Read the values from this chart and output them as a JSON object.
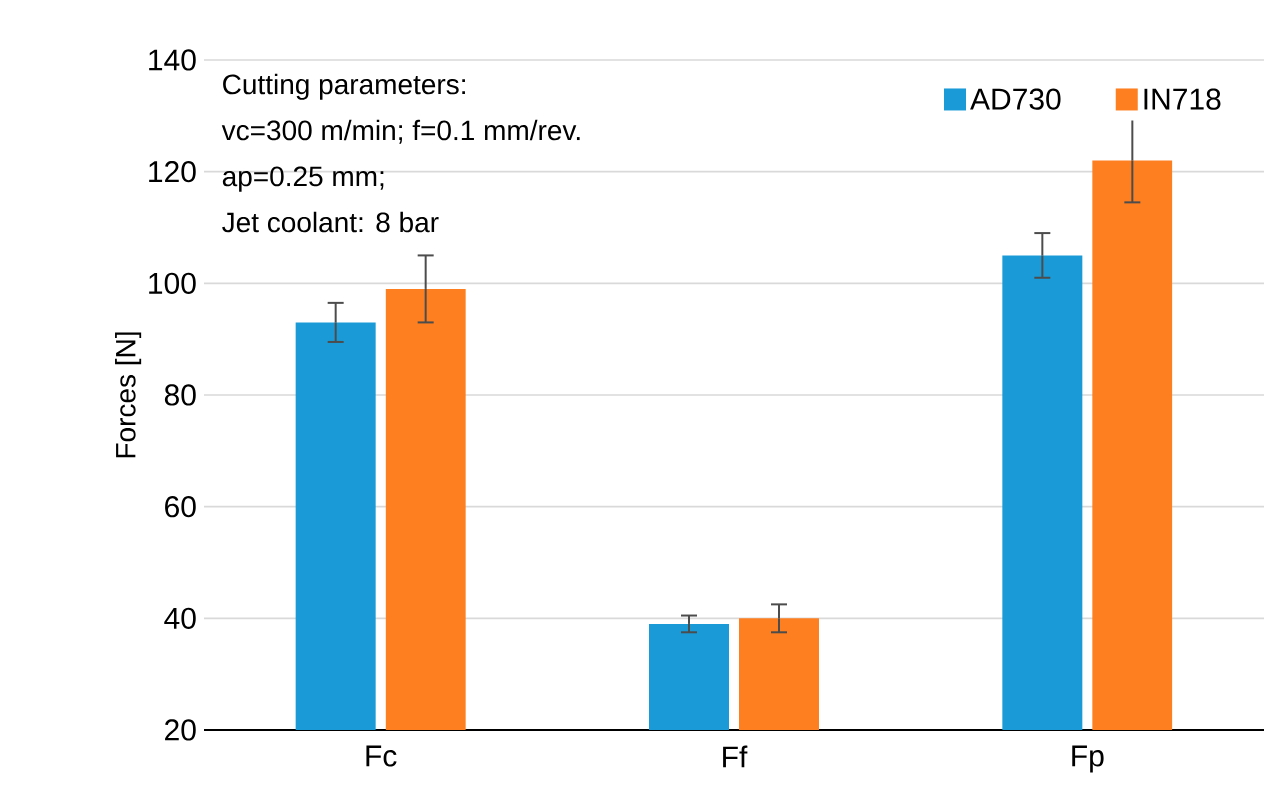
{
  "chart_data": {
    "type": "bar",
    "ylabel": "Forces [N]",
    "categories": [
      "Fc",
      "Ff",
      "Fp"
    ],
    "series": [
      {
        "name": "AD730",
        "color": "#1a9bd7",
        "values": [
          93,
          39,
          105
        ],
        "errors": [
          3.5,
          1.5,
          4
        ]
      },
      {
        "name": "IN718",
        "color": "#fd7f20",
        "values": [
          99,
          40,
          122
        ],
        "errors": [
          6,
          2.5,
          7.5
        ]
      }
    ],
    "ylim": [
      20,
      140
    ],
    "yticks": [
      20,
      40,
      60,
      80,
      100,
      120,
      140
    ],
    "grid": "y",
    "legend": "top right",
    "annotations": [
      "Cutting parameters:",
      "vc=300 m/min; f=0.1 mm/rev.",
      "ap=0.25 mm;",
      "Jet coolant: 8 bar"
    ]
  }
}
